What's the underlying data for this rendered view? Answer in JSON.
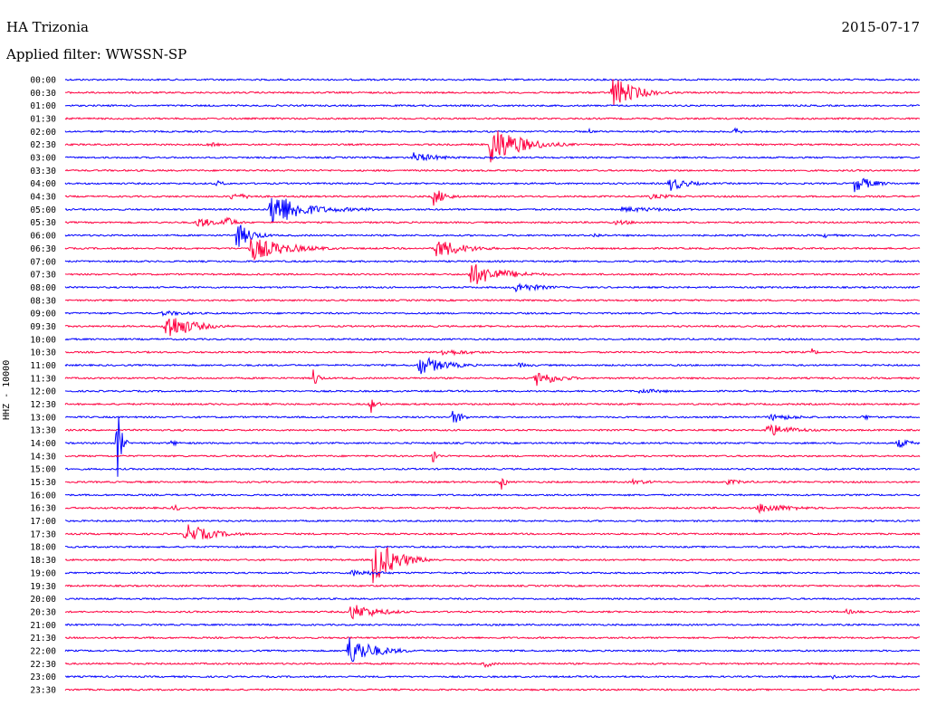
{
  "header": {
    "station": "HA Trizonia",
    "date": "2015-07-17",
    "filter": "Applied filter: WWSSN-SP"
  },
  "chart_data": {
    "type": "line",
    "title": "HA Trizonia",
    "subtitle": "Applied filter: WWSSN-SP",
    "ylabel": "HHZ - 10000",
    "xlabel": "",
    "grid": false,
    "colors": [
      "#0000ff",
      "#ff0040"
    ],
    "rows": [
      "00:00",
      "00:30",
      "01:00",
      "01:30",
      "02:00",
      "02:30",
      "03:00",
      "03:30",
      "04:00",
      "04:30",
      "05:00",
      "05:30",
      "06:00",
      "06:30",
      "07:00",
      "07:30",
      "08:00",
      "08:30",
      "09:00",
      "09:30",
      "10:00",
      "10:30",
      "11:00",
      "11:30",
      "12:00",
      "12:30",
      "13:00",
      "13:30",
      "14:00",
      "14:30",
      "15:00",
      "15:30",
      "16:00",
      "16:30",
      "17:00",
      "17:30",
      "18:00",
      "18:30",
      "19:00",
      "19:30",
      "20:00",
      "20:30",
      "21:00",
      "21:30",
      "22:00",
      "22:30",
      "23:00",
      "23:30"
    ],
    "row_minutes": 30,
    "events": [
      {
        "row": 1,
        "minute": 19.2,
        "amp": 20,
        "dur": 1.2
      },
      {
        "row": 4,
        "minute": 18.4,
        "amp": 3,
        "dur": 0.3
      },
      {
        "row": 4,
        "minute": 23.5,
        "amp": 5,
        "dur": 0.4
      },
      {
        "row": 5,
        "minute": 5.0,
        "amp": 3,
        "dur": 0.8
      },
      {
        "row": 5,
        "minute": 14.9,
        "amp": 24,
        "dur": 1.6
      },
      {
        "row": 6,
        "minute": 12.2,
        "amp": 6,
        "dur": 1.5
      },
      {
        "row": 8,
        "minute": 5.3,
        "amp": 4,
        "dur": 0.5
      },
      {
        "row": 8,
        "minute": 21.2,
        "amp": 9,
        "dur": 1.0
      },
      {
        "row": 8,
        "minute": 27.7,
        "amp": 10,
        "dur": 1.0
      },
      {
        "row": 9,
        "minute": 5.8,
        "amp": 4,
        "dur": 1.5
      },
      {
        "row": 9,
        "minute": 12.9,
        "amp": 11,
        "dur": 0.7
      },
      {
        "row": 9,
        "minute": 20.5,
        "amp": 3,
        "dur": 2.0
      },
      {
        "row": 10,
        "minute": 7.2,
        "amp": 24,
        "dur": 1.5
      },
      {
        "row": 10,
        "minute": 9.0,
        "amp": 3,
        "dur": 4.0
      },
      {
        "row": 10,
        "minute": 19.5,
        "amp": 3,
        "dur": 4.0
      },
      {
        "row": 11,
        "minute": 4.6,
        "amp": 7,
        "dur": 1.0
      },
      {
        "row": 11,
        "minute": 5.5,
        "amp": 10,
        "dur": 0.6
      },
      {
        "row": 11,
        "minute": 19.3,
        "amp": 3,
        "dur": 1.5
      },
      {
        "row": 12,
        "minute": 6.0,
        "amp": 16,
        "dur": 0.8
      },
      {
        "row": 12,
        "minute": 18.5,
        "amp": 3,
        "dur": 0.8
      },
      {
        "row": 12,
        "minute": 26.6,
        "amp": 3,
        "dur": 0.8
      },
      {
        "row": 13,
        "minute": 6.5,
        "amp": 14,
        "dur": 2.0
      },
      {
        "row": 13,
        "minute": 13.0,
        "amp": 12,
        "dur": 1.5
      },
      {
        "row": 15,
        "minute": 14.2,
        "amp": 14,
        "dur": 1.8
      },
      {
        "row": 16,
        "minute": 15.8,
        "amp": 6,
        "dur": 1.5
      },
      {
        "row": 18,
        "minute": 3.4,
        "amp": 3,
        "dur": 2.0
      },
      {
        "row": 19,
        "minute": 3.5,
        "amp": 18,
        "dur": 1.3
      },
      {
        "row": 21,
        "minute": 13.2,
        "amp": 4,
        "dur": 2.0
      },
      {
        "row": 21,
        "minute": 26.2,
        "amp": 5,
        "dur": 0.3
      },
      {
        "row": 22,
        "minute": 12.4,
        "amp": 12,
        "dur": 1.4
      },
      {
        "row": 22,
        "minute": 15.9,
        "amp": 3,
        "dur": 1.0
      },
      {
        "row": 23,
        "minute": 8.7,
        "amp": 12,
        "dur": 0.3
      },
      {
        "row": 23,
        "minute": 16.5,
        "amp": 10,
        "dur": 1.2
      },
      {
        "row": 24,
        "minute": 20.1,
        "amp": 3,
        "dur": 2.0
      },
      {
        "row": 25,
        "minute": 10.7,
        "amp": 12,
        "dur": 0.3
      },
      {
        "row": 26,
        "minute": 13.6,
        "amp": 10,
        "dur": 0.5
      },
      {
        "row": 26,
        "minute": 24.7,
        "amp": 4,
        "dur": 2.0
      },
      {
        "row": 26,
        "minute": 28.0,
        "amp": 6,
        "dur": 0.3
      },
      {
        "row": 27,
        "minute": 24.6,
        "amp": 8,
        "dur": 1.5
      },
      {
        "row": 28,
        "minute": 1.8,
        "amp": 58,
        "dur": 0.2
      },
      {
        "row": 28,
        "minute": 3.7,
        "amp": 3,
        "dur": 0.8
      },
      {
        "row": 28,
        "minute": 29.2,
        "amp": 6,
        "dur": 0.8
      },
      {
        "row": 29,
        "minute": 12.9,
        "amp": 12,
        "dur": 0.2
      },
      {
        "row": 31,
        "minute": 15.3,
        "amp": 12,
        "dur": 0.2
      },
      {
        "row": 31,
        "minute": 19.9,
        "amp": 3,
        "dur": 1.5
      },
      {
        "row": 31,
        "minute": 23.2,
        "amp": 3,
        "dur": 1.5
      },
      {
        "row": 33,
        "minute": 3.8,
        "amp": 6,
        "dur": 0.3
      },
      {
        "row": 33,
        "minute": 24.3,
        "amp": 6,
        "dur": 2.0
      },
      {
        "row": 35,
        "minute": 4.2,
        "amp": 12,
        "dur": 1.5
      },
      {
        "row": 37,
        "minute": 10.8,
        "amp": 28,
        "dur": 1.2
      },
      {
        "row": 38,
        "minute": 10.0,
        "amp": 4,
        "dur": 1.8
      },
      {
        "row": 41,
        "minute": 10.0,
        "amp": 10,
        "dur": 1.5
      },
      {
        "row": 41,
        "minute": 27.4,
        "amp": 3,
        "dur": 1.0
      },
      {
        "row": 44,
        "minute": 9.9,
        "amp": 18,
        "dur": 1.4
      },
      {
        "row": 45,
        "minute": 14.7,
        "amp": 5,
        "dur": 0.5
      },
      {
        "row": 46,
        "minute": 26.9,
        "amp": 4,
        "dur": 0.6
      }
    ]
  }
}
